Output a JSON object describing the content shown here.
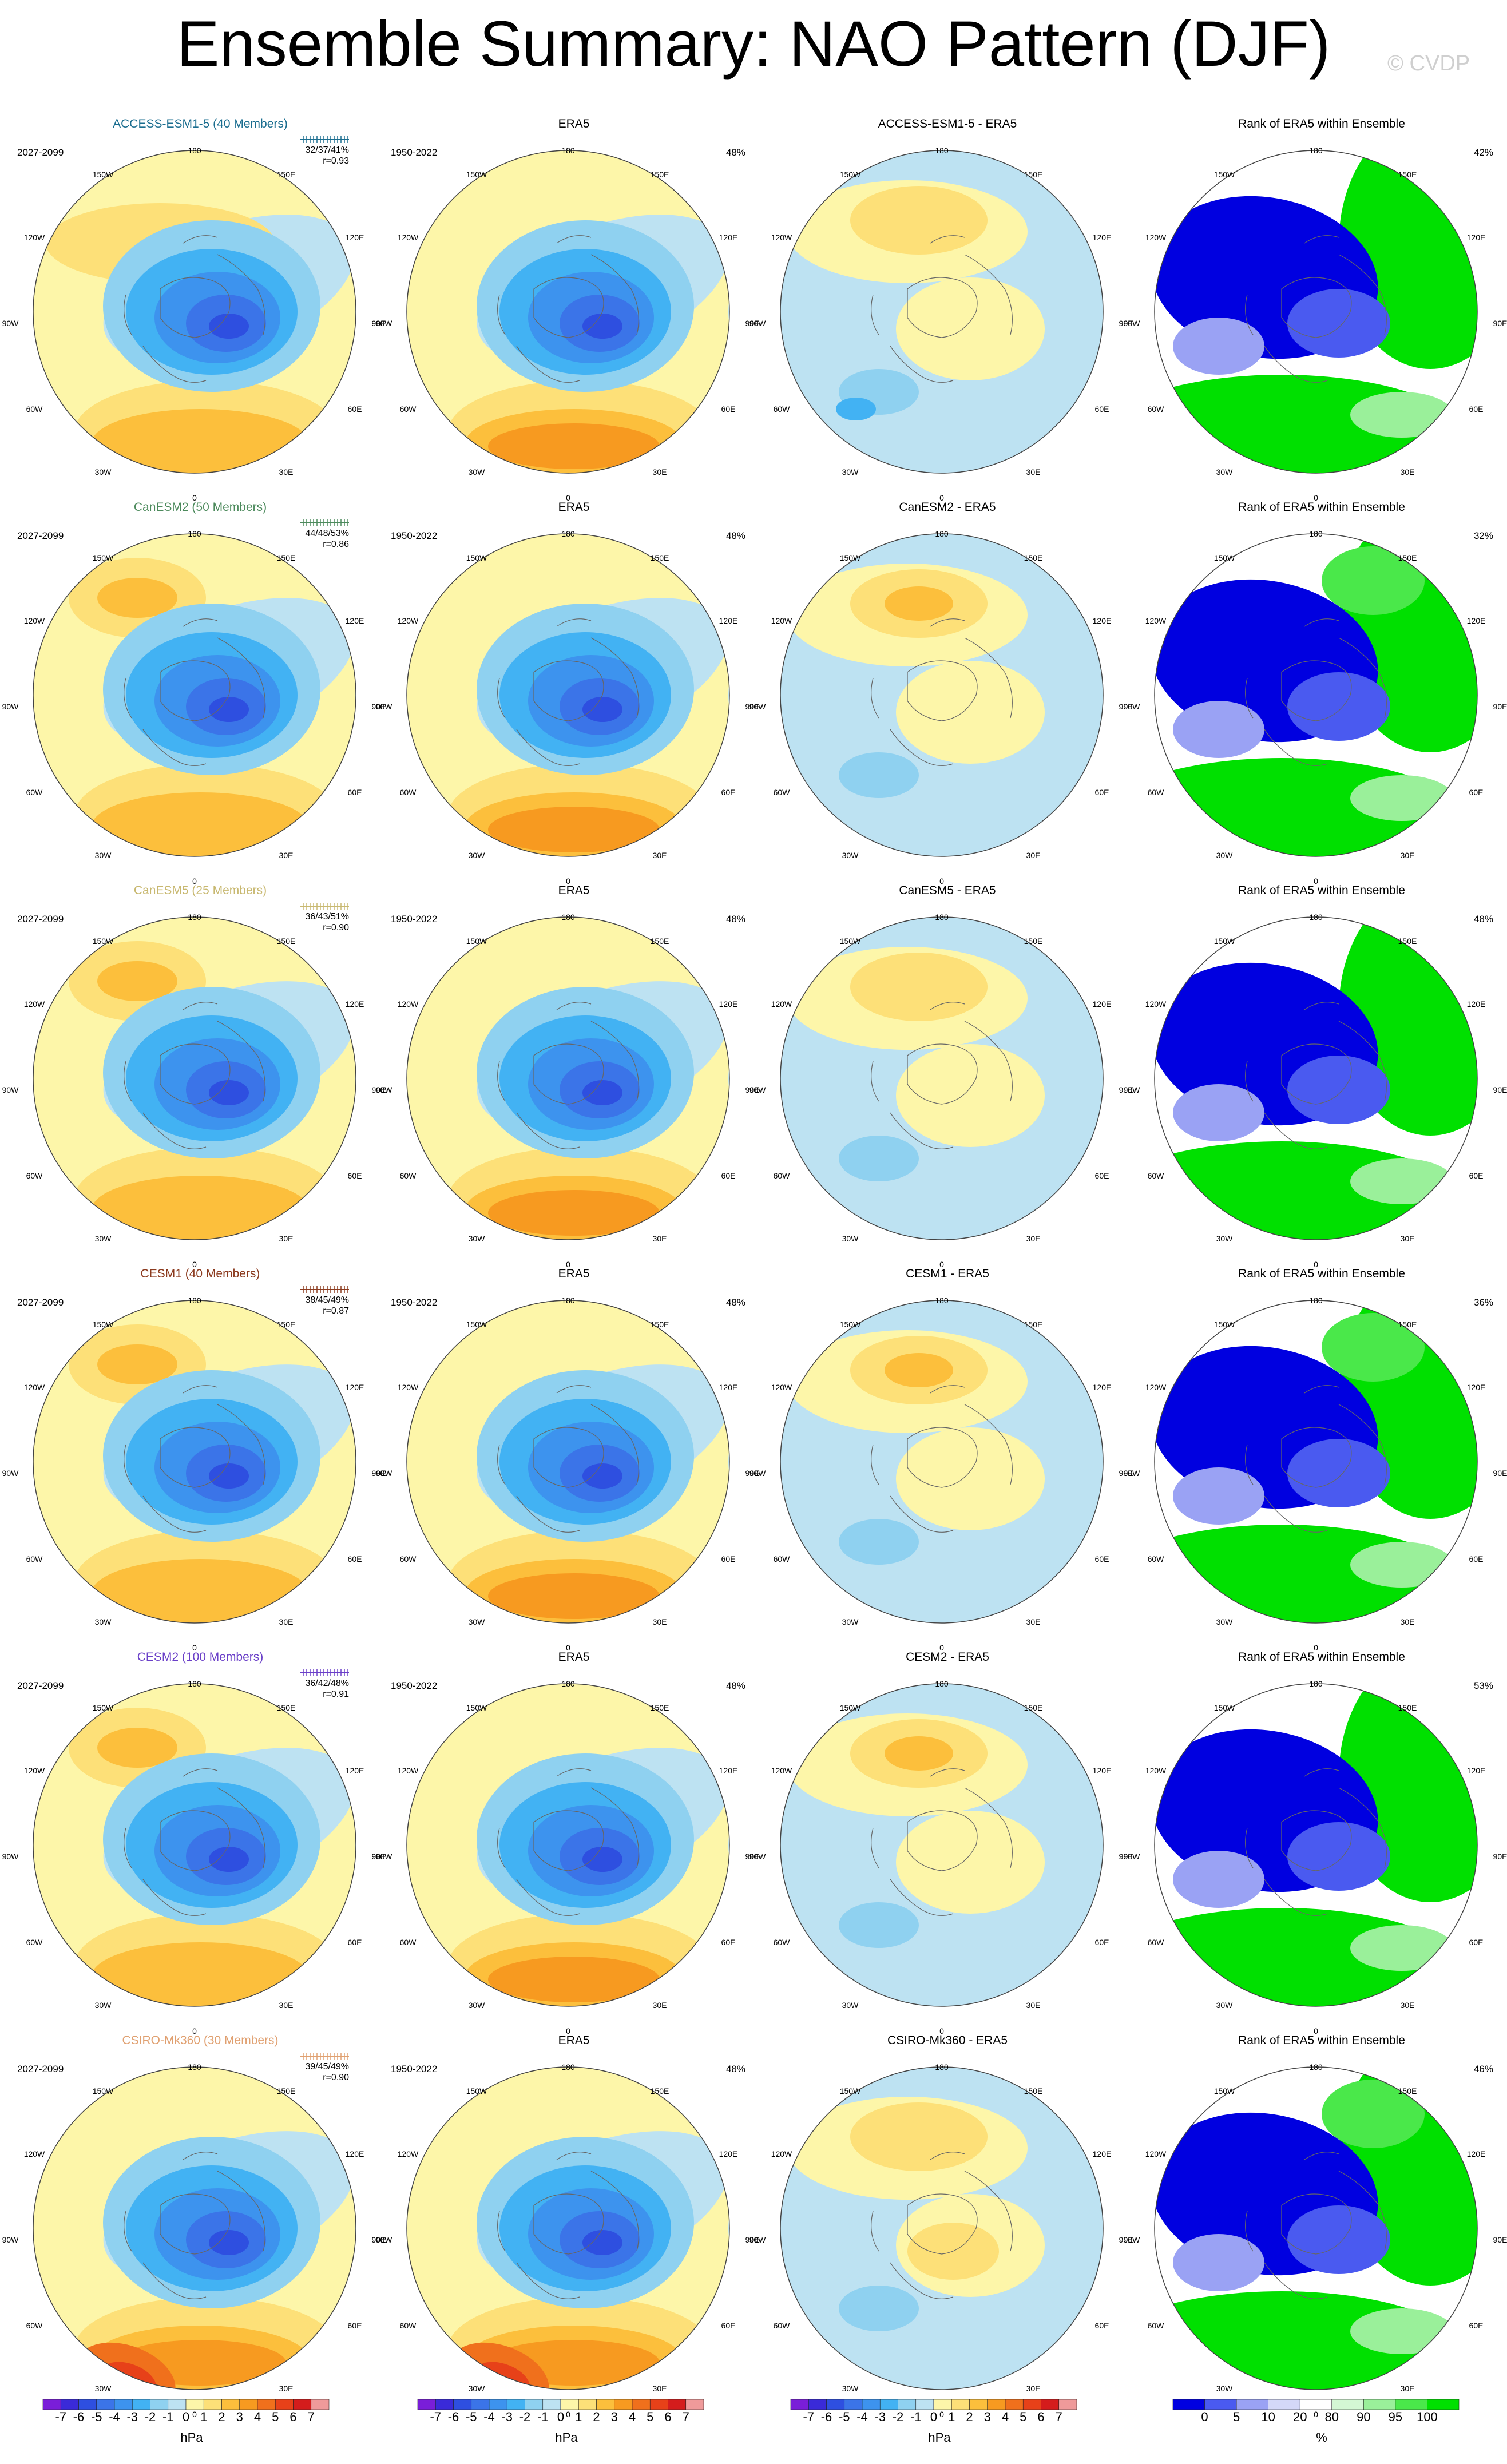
{
  "title": "Ensemble Summary: NAO Pattern (DJF)",
  "watermark": "© CVDP",
  "lon_labels": [
    "180",
    "150E",
    "120E",
    "90E",
    "60E",
    "30E",
    "0",
    "30W",
    "60W",
    "90W",
    "120W",
    "150W"
  ],
  "rows": [
    {
      "model": "ACCESS-ESM1-5 (40 Members)",
      "color": "#1a6d8f",
      "period": "2027-2099",
      "stats": "32/37/41%",
      "r": "r=0.93",
      "obs": "ERA5",
      "obs_period": "1950-2022",
      "obs_pct": "48%",
      "diff": "ACCESS-ESM1-5 - ERA5",
      "rank": "Rank of ERA5 within Ensemble",
      "rank_pct": "42%"
    },
    {
      "model": "CanESM2 (50 Members)",
      "color": "#4c8a5c",
      "period": "2027-2099",
      "stats": "44/48/53%",
      "r": "r=0.86",
      "obs": "ERA5",
      "obs_period": "1950-2022",
      "obs_pct": "48%",
      "diff": "CanESM2 - ERA5",
      "rank": "Rank of ERA5 within Ensemble",
      "rank_pct": "32%"
    },
    {
      "model": "CanESM5 (25 Members)",
      "color": "#c8b870",
      "period": "2027-2099",
      "stats": "36/43/51%",
      "r": "r=0.90",
      "obs": "ERA5",
      "obs_period": "1950-2022",
      "obs_pct": "48%",
      "diff": "CanESM5 - ERA5",
      "rank": "Rank of ERA5 within Ensemble",
      "rank_pct": "48%"
    },
    {
      "model": "CESM1 (40 Members)",
      "color": "#8b3a1e",
      "period": "2027-2099",
      "stats": "38/45/49%",
      "r": "r=0.87",
      "obs": "ERA5",
      "obs_period": "1950-2022",
      "obs_pct": "48%",
      "diff": "CESM1 - ERA5",
      "rank": "Rank of ERA5 within Ensemble",
      "rank_pct": "36%"
    },
    {
      "model": "CESM2 (100 Members)",
      "color": "#6a3fc8",
      "period": "2027-2099",
      "stats": "36/42/48%",
      "r": "r=0.91",
      "obs": "ERA5",
      "obs_period": "1950-2022",
      "obs_pct": "48%",
      "diff": "CESM2 - ERA5",
      "rank": "Rank of ERA5 within Ensemble",
      "rank_pct": "53%"
    },
    {
      "model": "CSIRO-Mk360 (30 Members)",
      "color": "#e0a070",
      "period": "2027-2099",
      "stats": "39/45/49%",
      "r": "r=0.90",
      "obs": "ERA5",
      "obs_period": "1950-2022",
      "obs_pct": "48%",
      "diff": "CSIRO-Mk360 - ERA5",
      "rank": "Rank of ERA5 within Ensemble",
      "rank_pct": "46%"
    }
  ],
  "colorbar_hpa": {
    "labels": [
      "-7",
      "-6",
      "-5",
      "-4",
      "-3",
      "-2",
      "-1",
      "0",
      "1",
      "2",
      "3",
      "4",
      "5",
      "6",
      "7"
    ],
    "unit": "hPa",
    "colors": [
      "#7a1ed8",
      "#3a2ad8",
      "#2e4fe0",
      "#3b74e8",
      "#3d93ee",
      "#42b2f3",
      "#8fd1f0",
      "#bde2f2",
      "#fdf6a9",
      "#fde078",
      "#fcbf3c",
      "#f79a20",
      "#f0701c",
      "#e74119",
      "#d41c1c",
      "#ef9a9a"
    ]
  },
  "colorbar_rank": {
    "labels": [
      "0",
      "5",
      "10",
      "20",
      "80",
      "90",
      "95",
      "100"
    ],
    "unit": "%",
    "colors": [
      "#0000e0",
      "#4a5af0",
      "#9aa2f4",
      "#d4d8f8",
      "#ffffff",
      "#d4f7d4",
      "#9af09a",
      "#4ae84a",
      "#00e000"
    ]
  },
  "palette": {
    "pos": "#fdf6a9",
    "pos2": "#fde078",
    "pos3": "#fcbf3c",
    "pos4": "#f79a20",
    "pos5": "#f0701c",
    "pos6": "#e74119",
    "neg": "#bde2f2",
    "neg2": "#8fd1f0",
    "neg3": "#42b2f3",
    "neg4": "#3d93ee",
    "neg5": "#3b74e8",
    "neg6": "#2e4fe0",
    "g": "#00e000",
    "g2": "#4ae84a",
    "g3": "#9af09a",
    "b": "#0000e0",
    "b2": "#4a5af0",
    "b3": "#9aa2f4"
  }
}
